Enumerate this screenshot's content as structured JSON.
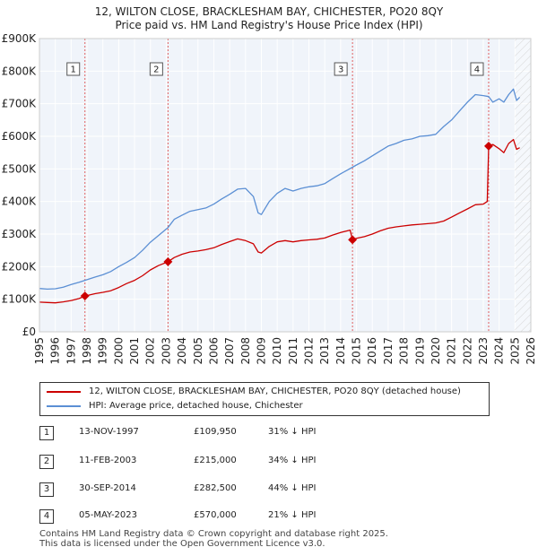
{
  "title_line1": "12, WILTON CLOSE, BRACKLESHAM BAY, CHICHESTER, PO20 8QY",
  "title_line2": "Price paid vs. HM Land Registry's House Price Index (HPI)",
  "chart_data": {
    "type": "line",
    "title": "12, WILTON CLOSE, BRACKLESHAM BAY, CHICHESTER, PO20 8QY — Price paid vs. HM Land Registry's House Price Index (HPI)",
    "xlabel": "",
    "ylabel": "",
    "xlim": [
      1995,
      2026
    ],
    "ylim": [
      0,
      900000
    ],
    "x_ticks": [
      1995,
      1996,
      1997,
      1998,
      1999,
      2000,
      2001,
      2002,
      2003,
      2004,
      2005,
      2006,
      2007,
      2008,
      2009,
      2010,
      2011,
      2012,
      2013,
      2014,
      2015,
      2016,
      2017,
      2018,
      2019,
      2020,
      2021,
      2022,
      2023,
      2024,
      2025,
      2026
    ],
    "y_ticks": [
      {
        "value": 0,
        "label": "£0"
      },
      {
        "value": 100000,
        "label": "£100K"
      },
      {
        "value": 200000,
        "label": "£200K"
      },
      {
        "value": 300000,
        "label": "£300K"
      },
      {
        "value": 400000,
        "label": "£400K"
      },
      {
        "value": 500000,
        "label": "£500K"
      },
      {
        "value": 600000,
        "label": "£600K"
      },
      {
        "value": 700000,
        "label": "£700K"
      },
      {
        "value": 800000,
        "label": "£800K"
      },
      {
        "value": 900000,
        "label": "£900K"
      }
    ],
    "grid": true,
    "future_hatch_from": 2025.0,
    "series": [
      {
        "name": "12, WILTON CLOSE, BRACKLESHAM BAY, CHICHESTER, PO20 8QY (detached house)",
        "color": "#cc0000",
        "points": [
          [
            1995.0,
            91000
          ],
          [
            1995.5,
            90000
          ],
          [
            1996.0,
            89000
          ],
          [
            1996.5,
            92000
          ],
          [
            1997.0,
            96000
          ],
          [
            1997.5,
            102000
          ],
          [
            1997.87,
            109950
          ],
          [
            1998.5,
            117000
          ],
          [
            1999.0,
            121000
          ],
          [
            1999.5,
            126000
          ],
          [
            2000.0,
            136000
          ],
          [
            2000.5,
            148000
          ],
          [
            2001.0,
            158000
          ],
          [
            2001.5,
            172000
          ],
          [
            2002.0,
            190000
          ],
          [
            2002.5,
            203000
          ],
          [
            2003.11,
            215000
          ],
          [
            2003.5,
            228000
          ],
          [
            2004.0,
            238000
          ],
          [
            2004.5,
            245000
          ],
          [
            2005.0,
            248000
          ],
          [
            2005.5,
            252000
          ],
          [
            2006.0,
            258000
          ],
          [
            2006.5,
            268000
          ],
          [
            2007.0,
            277000
          ],
          [
            2007.5,
            285000
          ],
          [
            2008.0,
            280000
          ],
          [
            2008.5,
            270000
          ],
          [
            2008.8,
            245000
          ],
          [
            2009.0,
            242000
          ],
          [
            2009.5,
            262000
          ],
          [
            2010.0,
            276000
          ],
          [
            2010.5,
            280000
          ],
          [
            2011.0,
            276000
          ],
          [
            2011.5,
            280000
          ],
          [
            2012.0,
            282000
          ],
          [
            2012.5,
            284000
          ],
          [
            2013.0,
            288000
          ],
          [
            2013.5,
            297000
          ],
          [
            2014.0,
            305000
          ],
          [
            2014.6,
            312000
          ],
          [
            2014.75,
            282500
          ],
          [
            2015.0,
            287000
          ],
          [
            2015.5,
            292000
          ],
          [
            2016.0,
            300000
          ],
          [
            2016.5,
            310000
          ],
          [
            2017.0,
            318000
          ],
          [
            2017.5,
            322000
          ],
          [
            2018.0,
            325000
          ],
          [
            2018.5,
            328000
          ],
          [
            2019.0,
            330000
          ],
          [
            2019.5,
            332000
          ],
          [
            2020.0,
            334000
          ],
          [
            2020.5,
            340000
          ],
          [
            2021.0,
            352000
          ],
          [
            2021.5,
            365000
          ],
          [
            2022.0,
            377000
          ],
          [
            2022.5,
            390000
          ],
          [
            2023.0,
            392000
          ],
          [
            2023.25,
            400000
          ],
          [
            2023.34,
            570000
          ],
          [
            2023.6,
            575000
          ],
          [
            2024.0,
            562000
          ],
          [
            2024.3,
            550000
          ],
          [
            2024.6,
            578000
          ],
          [
            2024.9,
            590000
          ],
          [
            2025.1,
            560000
          ],
          [
            2025.3,
            565000
          ]
        ]
      },
      {
        "name": "HPI: Average price, detached house, Chichester",
        "color": "#5b8fd4",
        "points": [
          [
            1995.0,
            133000
          ],
          [
            1995.5,
            131000
          ],
          [
            1996.0,
            132000
          ],
          [
            1996.5,
            137000
          ],
          [
            1997.0,
            145000
          ],
          [
            1997.5,
            152000
          ],
          [
            1997.87,
            158000
          ],
          [
            1998.5,
            168000
          ],
          [
            1999.0,
            175000
          ],
          [
            1999.5,
            185000
          ],
          [
            2000.0,
            200000
          ],
          [
            2000.5,
            213000
          ],
          [
            2001.0,
            228000
          ],
          [
            2001.5,
            250000
          ],
          [
            2002.0,
            275000
          ],
          [
            2002.5,
            295000
          ],
          [
            2003.11,
            320000
          ],
          [
            2003.5,
            345000
          ],
          [
            2004.0,
            358000
          ],
          [
            2004.5,
            370000
          ],
          [
            2005.0,
            375000
          ],
          [
            2005.5,
            380000
          ],
          [
            2006.0,
            392000
          ],
          [
            2006.5,
            408000
          ],
          [
            2007.0,
            422000
          ],
          [
            2007.5,
            438000
          ],
          [
            2008.0,
            440000
          ],
          [
            2008.5,
            415000
          ],
          [
            2008.8,
            365000
          ],
          [
            2009.0,
            360000
          ],
          [
            2009.5,
            400000
          ],
          [
            2010.0,
            425000
          ],
          [
            2010.5,
            440000
          ],
          [
            2011.0,
            432000
          ],
          [
            2011.5,
            440000
          ],
          [
            2012.0,
            445000
          ],
          [
            2012.5,
            448000
          ],
          [
            2013.0,
            455000
          ],
          [
            2013.5,
            470000
          ],
          [
            2014.0,
            485000
          ],
          [
            2014.75,
            505000
          ],
          [
            2015.0,
            512000
          ],
          [
            2015.5,
            525000
          ],
          [
            2016.0,
            540000
          ],
          [
            2016.5,
            555000
          ],
          [
            2017.0,
            570000
          ],
          [
            2017.5,
            578000
          ],
          [
            2018.0,
            588000
          ],
          [
            2018.5,
            592000
          ],
          [
            2019.0,
            600000
          ],
          [
            2019.5,
            602000
          ],
          [
            2020.0,
            606000
          ],
          [
            2020.5,
            630000
          ],
          [
            2021.0,
            650000
          ],
          [
            2021.5,
            678000
          ],
          [
            2022.0,
            705000
          ],
          [
            2022.5,
            728000
          ],
          [
            2023.0,
            725000
          ],
          [
            2023.34,
            722000
          ],
          [
            2023.6,
            705000
          ],
          [
            2024.0,
            715000
          ],
          [
            2024.3,
            705000
          ],
          [
            2024.6,
            728000
          ],
          [
            2024.9,
            745000
          ],
          [
            2025.1,
            710000
          ],
          [
            2025.3,
            720000
          ]
        ]
      }
    ],
    "sales": [
      {
        "num": "1",
        "x": 1997.87,
        "price": 109950,
        "date": "13-NOV-1997",
        "price_label": "£109,950",
        "hpi_label": "31% ↓ HPI"
      },
      {
        "num": "2",
        "x": 2003.11,
        "price": 215000,
        "date": "11-FEB-2003",
        "price_label": "£215,000",
        "hpi_label": "34% ↓ HPI"
      },
      {
        "num": "3",
        "x": 2014.75,
        "price": 282500,
        "date": "30-SEP-2014",
        "price_label": "£282,500",
        "hpi_label": "44% ↓ HPI"
      },
      {
        "num": "4",
        "x": 2023.34,
        "price": 570000,
        "date": "05-MAY-2023",
        "price_label": "£570,000",
        "hpi_label": "21% ↓ HPI"
      }
    ]
  },
  "legend": {
    "property_label": "12, WILTON CLOSE, BRACKLESHAM BAY, CHICHESTER, PO20 8QY (detached house)",
    "hpi_label": "HPI: Average price, detached house, Chichester"
  },
  "footer": {
    "line1": "Contains HM Land Registry data © Crown copyright and database right 2025.",
    "line2": "This data is licensed under the Open Government Licence v3.0."
  }
}
